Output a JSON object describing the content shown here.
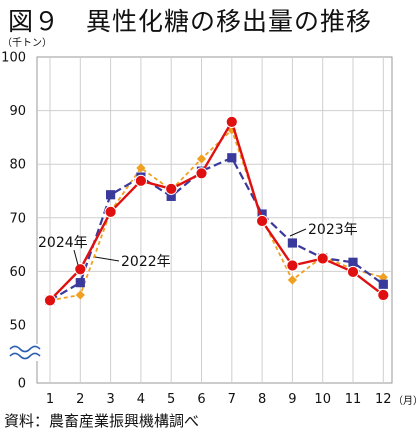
{
  "title": "図９　異性化糖の移出量の推移",
  "source": "資料：農畜産業振興機構調べ",
  "chart_data": {
    "type": "line",
    "y_unit": "（千トン）",
    "x_unit": "（月）",
    "ylim": [
      50,
      100
    ],
    "axis_break": true,
    "y_ticks": [
      "0",
      "50",
      "60",
      "70",
      "80",
      "90",
      "100"
    ],
    "x": [
      "1",
      "2",
      "3",
      "4",
      "5",
      "6",
      "7",
      "8",
      "9",
      "10",
      "11",
      "12"
    ],
    "grid": true,
    "series": [
      {
        "name": "2022年",
        "color": "#f0a020",
        "marker": "diamond",
        "dash": "dashed",
        "values": [
          54.6,
          55.6,
          71.2,
          79.3,
          75.2,
          81.0,
          86.4,
          69.8,
          58.4,
          62.8,
          60.4,
          58.9
        ]
      },
      {
        "name": "2023年",
        "color": "#3a3a9c",
        "marker": "square",
        "dash": "dashed",
        "values": [
          54.6,
          57.9,
          74.3,
          77.6,
          74.0,
          78.7,
          81.2,
          70.7,
          65.3,
          62.5,
          61.7,
          57.6
        ]
      },
      {
        "name": "2024年",
        "color": "#e01010",
        "marker": "circle",
        "dash": "solid",
        "values": [
          54.6,
          60.4,
          71.1,
          76.9,
          75.4,
          78.3,
          87.9,
          69.4,
          61.1,
          62.4,
          59.9,
          55.6
        ]
      }
    ]
  }
}
